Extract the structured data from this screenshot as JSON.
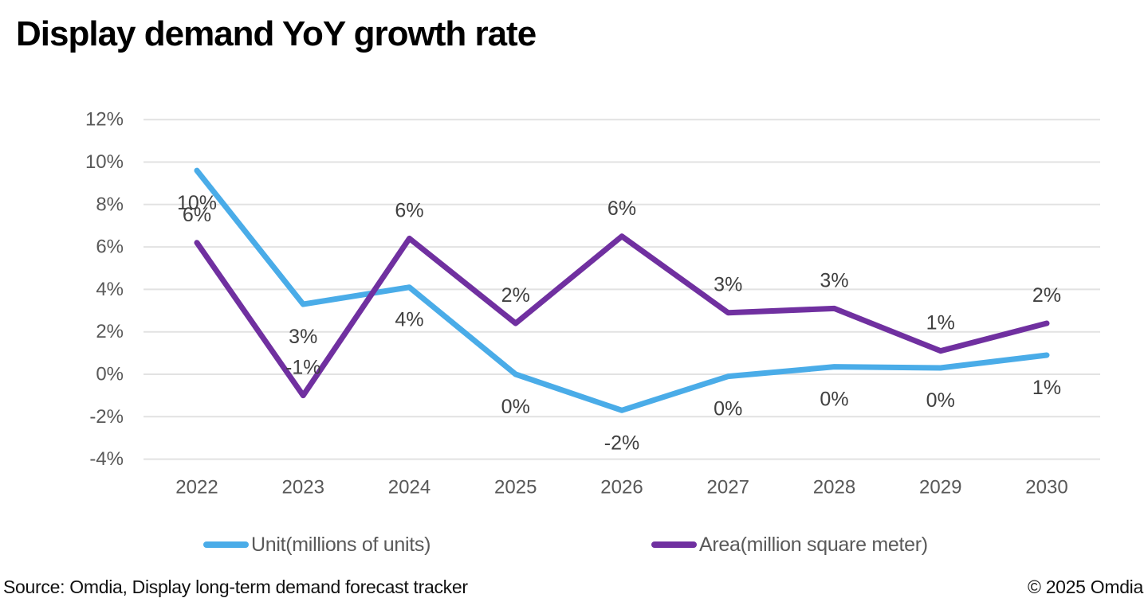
{
  "header": {
    "title": "Display demand YoY growth rate"
  },
  "footer": {
    "source": "Source: Omdia, Display long-term demand forecast tracker",
    "copyright": "© 2025 Omdia"
  },
  "chart_data": {
    "type": "line",
    "title": "Display demand YoY growth rate",
    "x": [
      2022,
      2023,
      2024,
      2025,
      2026,
      2027,
      2028,
      2029,
      2030
    ],
    "xlabel": "",
    "ylabel": "",
    "ylim": [
      -4,
      12
    ],
    "ytick_step": 2,
    "ytick_suffix": "%",
    "yticks": [
      "12%",
      "10%",
      "8%",
      "6%",
      "4%",
      "2%",
      "0%",
      "-2%",
      "-4%"
    ],
    "grid": true,
    "legend_position": "bottom",
    "series": [
      {
        "name": "Unit(millions of units)",
        "color": "#4AACE8",
        "values": [
          9.6,
          3.3,
          4.1,
          0.0,
          -1.7,
          -0.1,
          0.35,
          0.3,
          0.9
        ],
        "labels": [
          "10%",
          "3%",
          "4%",
          "0%",
          "-2%",
          "0%",
          "0%",
          "0%",
          "1%"
        ],
        "label_side": "below"
      },
      {
        "name": "Area(million square meter)",
        "color": "#7030A0",
        "values": [
          6.2,
          -1.0,
          6.4,
          2.4,
          6.5,
          2.9,
          3.1,
          1.1,
          2.4
        ],
        "labels": [
          "6%",
          "-1%",
          "6%",
          "2%",
          "6%",
          "3%",
          "3%",
          "1%",
          "2%"
        ],
        "label_side": "above"
      }
    ],
    "styles": {
      "gridline_color": "#E2E2E2",
      "axis_label_color": "#595959",
      "data_label_color": "#404040"
    }
  }
}
